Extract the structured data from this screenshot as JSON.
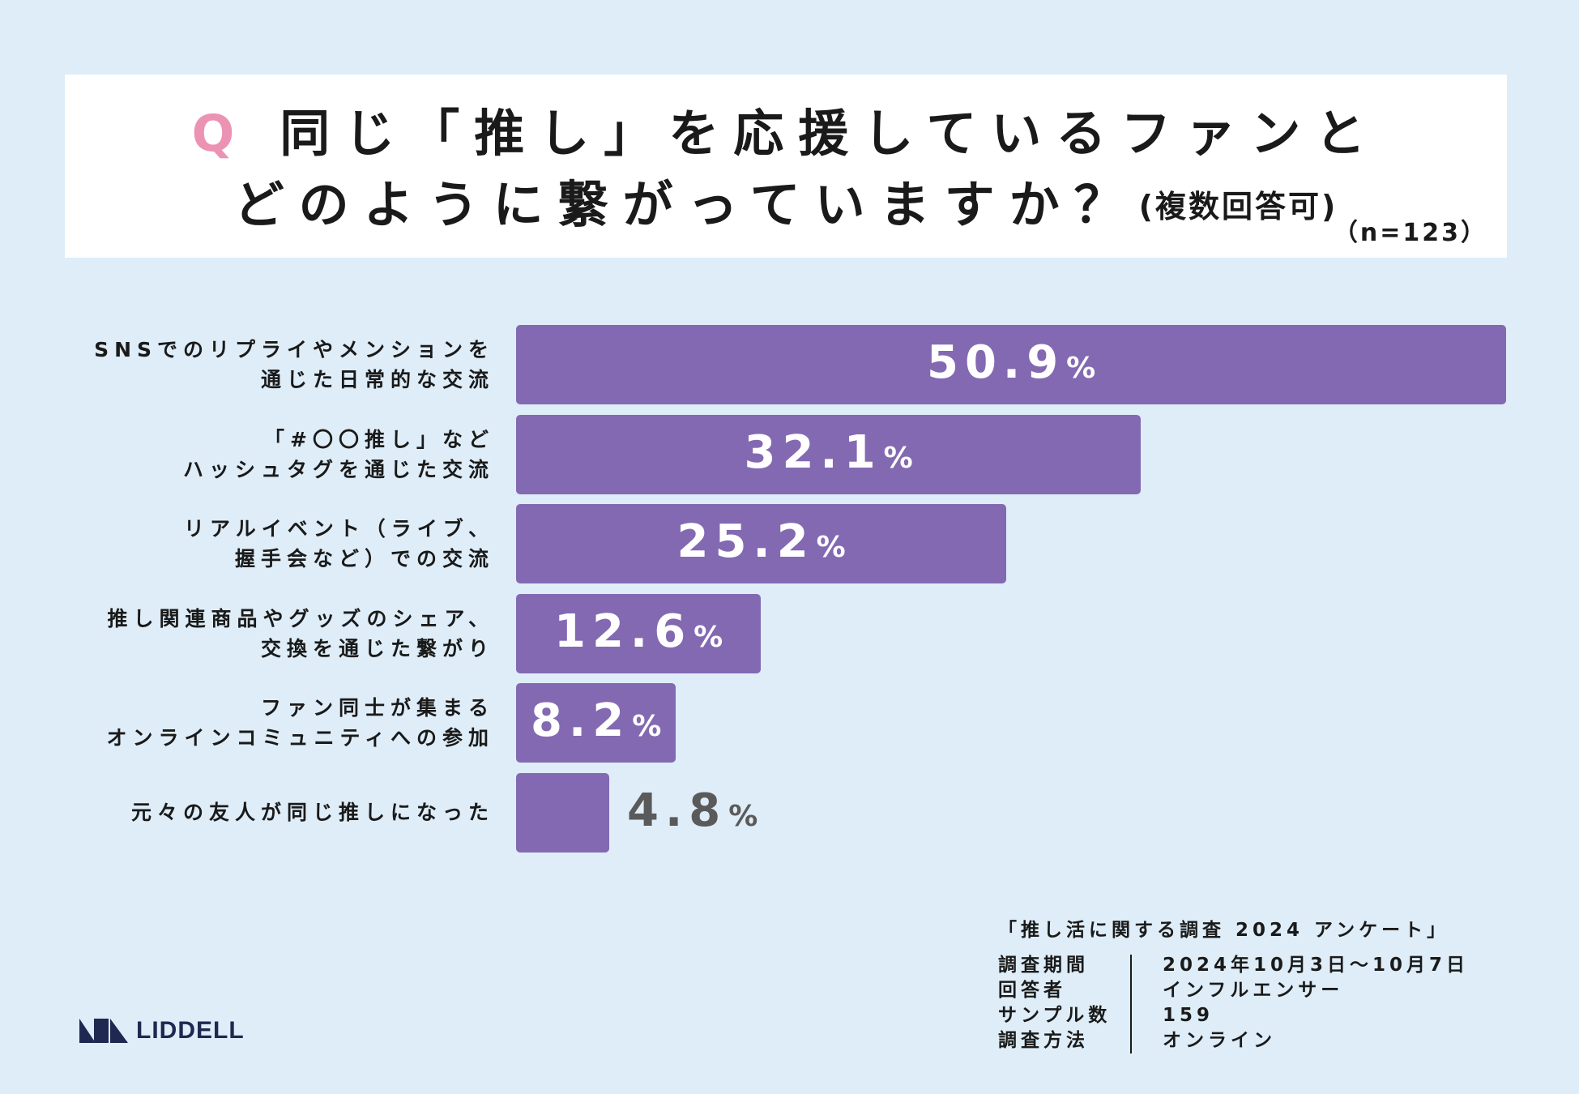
{
  "title": {
    "q_mark": "Q",
    "line1": "同じ「推し」を応援しているファンと",
    "line2": "どのように繋がっていますか？",
    "note": "(複数回答可)",
    "n_label": "（n=123）"
  },
  "chart_data": {
    "type": "bar",
    "orientation": "horizontal",
    "categories": [
      [
        "SNSでのリプライやメンションを",
        "通じた日常的な交流"
      ],
      [
        "「#〇〇推し」など",
        "ハッシュタグを通じた交流"
      ],
      [
        "リアルイベント（ライブ、",
        "握手会など）での交流"
      ],
      [
        "推し関連商品やグッズのシェア、",
        "交換を通じた繋がり"
      ],
      [
        "ファン同士が集まる",
        "オンラインコミュニティへの参加"
      ],
      [
        "元々の友人が同じ推しになった"
      ]
    ],
    "values": [
      50.9,
      32.1,
      25.2,
      12.6,
      8.2,
      4.8
    ],
    "value_labels": [
      "50.9",
      "32.1",
      "25.2",
      "12.6",
      "8.2",
      "4.8"
    ],
    "unit": "%",
    "xlim": [
      0,
      50.9
    ],
    "bar_color": "#8369b2"
  },
  "survey": {
    "title": "「推し活に関する調査 2024 アンケート」",
    "rows": [
      {
        "key": "調査期間",
        "value": "2024年10月3日〜10月7日"
      },
      {
        "key": "回答者",
        "value": "インフルエンサー"
      },
      {
        "key": "サンプル数",
        "value": "159"
      },
      {
        "key": "調査方法",
        "value": "オンライン"
      }
    ]
  },
  "logo": {
    "text": "LIDDELL"
  },
  "colors": {
    "background": "#deedf8",
    "accent": "#ec92b3",
    "bar": "#8369b2"
  }
}
